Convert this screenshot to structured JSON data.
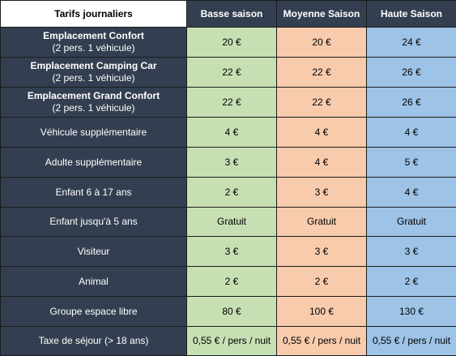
{
  "header": {
    "title": "Tarifs journaliers",
    "columns": [
      "Basse saison",
      "Moyenne Saison",
      "Haute Saison"
    ]
  },
  "rows": [
    {
      "label": "Emplacement Confort",
      "sub": "(2 pers. 1 véhicule)",
      "bold": true,
      "values": [
        "20 €",
        "20 €",
        "24 €"
      ]
    },
    {
      "label": "Emplacement Camping Car",
      "sub": "(2 pers. 1 véhicule)",
      "bold": true,
      "values": [
        "22 €",
        "22 €",
        "26 €"
      ]
    },
    {
      "label": "Emplacement Grand Confort",
      "sub": "(2 pers. 1 véhicule)",
      "bold": true,
      "values": [
        "22 €",
        "22 €",
        "26 €"
      ]
    },
    {
      "label": "Véhicule supplémentaire",
      "values": [
        "4 €",
        "4 €",
        "4 €"
      ]
    },
    {
      "label": "Adulte supplémentaire",
      "values": [
        "3 €",
        "4 €",
        "5 €"
      ]
    },
    {
      "label": "Enfant 6 à 17 ans",
      "values": [
        "2 €",
        "3 €",
        "4 €"
      ]
    },
    {
      "label": "Enfant jusqu'à 5 ans",
      "values": [
        "Gratuit",
        "Gratuit",
        "Gratuit"
      ]
    },
    {
      "label": "Visiteur",
      "values": [
        "3 €",
        "3 €",
        "3 €"
      ]
    },
    {
      "label": "Animal",
      "values": [
        "2 €",
        "2 €",
        "2 €"
      ]
    },
    {
      "label": "Groupe espace libre",
      "values": [
        "80 €",
        "100 €",
        "130 €"
      ]
    },
    {
      "label": "Taxe de séjour (> 18 ans)",
      "values": [
        "0,55 € / pers / nuit",
        "0,55 € / pers / nuit",
        "0,55 € / pers / nuit"
      ]
    }
  ],
  "colors": {
    "label_bg": "#333f50",
    "basse": "#c6e0b4",
    "moyenne": "#f8cbad",
    "haute": "#9dc3e6"
  }
}
